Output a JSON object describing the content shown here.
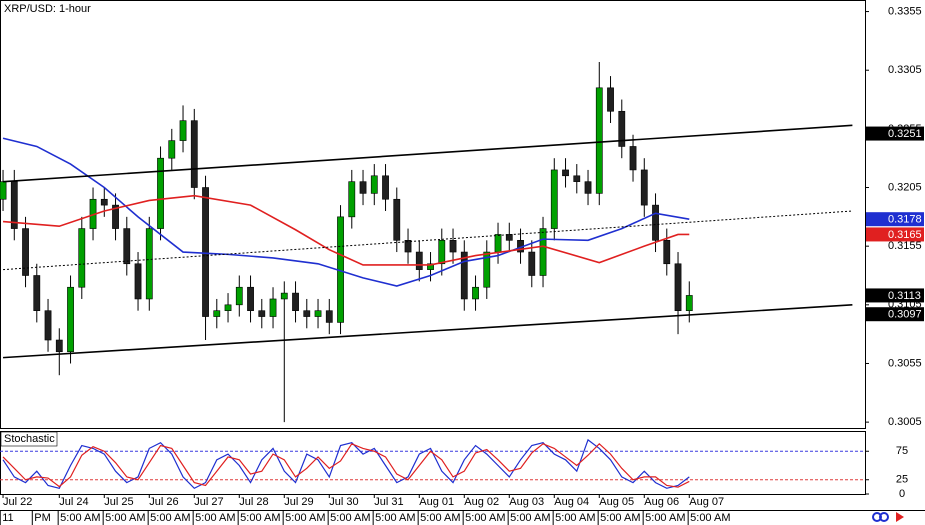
{
  "chart_data": [
    {
      "type": "candlestick",
      "title": "XRP/USD: 1-hour",
      "xlim": [
        -0.27,
        76.62
      ],
      "ylim": [
        0.3,
        0.3364
      ],
      "yticks": [
        0.3355,
        0.3305,
        0.3255,
        0.3205,
        0.3155,
        0.3105,
        0.3055,
        0.3005
      ],
      "xticks": [
        {
          "value": 0,
          "label": "Jul 22"
        },
        {
          "value": 5,
          "label": "Jul 24"
        },
        {
          "value": 9,
          "label": "Jul 25"
        },
        {
          "value": 13,
          "label": "Jul 26"
        },
        {
          "value": 17,
          "label": "Jul 27"
        },
        {
          "value": 21,
          "label": "Jul 28"
        },
        {
          "value": 25,
          "label": "Jul 29"
        },
        {
          "value": 29,
          "label": "Jul 30"
        },
        {
          "value": 33,
          "label": "Jul 31"
        },
        {
          "value": 37,
          "label": "Aug 01"
        },
        {
          "value": 41,
          "label": "Aug 02"
        },
        {
          "value": 45,
          "label": "Aug 03"
        },
        {
          "value": 49,
          "label": "Aug 04"
        },
        {
          "value": 53,
          "label": "Aug 05"
        },
        {
          "value": 57,
          "label": "Aug 06"
        },
        {
          "value": 61,
          "label": "Aug 07"
        }
      ],
      "up_color": "#00a000",
      "down_color": "#202020",
      "open": [
        0.3195,
        0.321,
        0.317,
        0.313,
        0.31,
        0.3075,
        0.3065,
        0.312,
        0.317,
        0.3195,
        0.319,
        0.317,
        0.314,
        0.311,
        0.317,
        0.323,
        0.3245,
        0.3262,
        0.3205,
        0.3095,
        0.31,
        0.3105,
        0.312,
        0.31,
        0.3095,
        0.311,
        0.3115,
        0.31,
        0.3095,
        0.31,
        0.309,
        0.318,
        0.321,
        0.32,
        0.3215,
        0.3195,
        0.316,
        0.315,
        0.3135,
        0.314,
        0.316,
        0.315,
        0.311,
        0.312,
        0.315,
        0.3165,
        0.316,
        0.315,
        0.313,
        0.317,
        0.322,
        0.3215,
        0.321,
        0.32,
        0.329,
        0.327,
        0.324,
        0.322,
        0.319,
        0.316,
        0.314,
        0.31
      ],
      "high": [
        0.322,
        0.322,
        0.318,
        0.314,
        0.311,
        0.3085,
        0.313,
        0.318,
        0.3205,
        0.3205,
        0.32,
        0.318,
        0.315,
        0.318,
        0.324,
        0.3255,
        0.3275,
        0.3272,
        0.3215,
        0.311,
        0.3115,
        0.313,
        0.313,
        0.311,
        0.312,
        0.3125,
        0.3125,
        0.311,
        0.311,
        0.311,
        0.319,
        0.322,
        0.322,
        0.3225,
        0.3225,
        0.3205,
        0.317,
        0.316,
        0.315,
        0.317,
        0.317,
        0.316,
        0.313,
        0.316,
        0.3175,
        0.3175,
        0.317,
        0.316,
        0.318,
        0.323,
        0.323,
        0.3225,
        0.322,
        0.3312,
        0.33,
        0.328,
        0.325,
        0.323,
        0.32,
        0.317,
        0.315,
        0.3125
      ],
      "low": [
        0.3185,
        0.316,
        0.312,
        0.309,
        0.3065,
        0.3045,
        0.3055,
        0.311,
        0.316,
        0.318,
        0.316,
        0.313,
        0.31,
        0.31,
        0.316,
        0.322,
        0.3235,
        0.3195,
        0.3075,
        0.3085,
        0.309,
        0.3095,
        0.309,
        0.3085,
        0.3085,
        0.3005,
        0.309,
        0.3085,
        0.3085,
        0.308,
        0.308,
        0.317,
        0.319,
        0.319,
        0.3185,
        0.315,
        0.314,
        0.3125,
        0.3125,
        0.313,
        0.314,
        0.31,
        0.31,
        0.311,
        0.314,
        0.315,
        0.314,
        0.312,
        0.312,
        0.316,
        0.3205,
        0.32,
        0.319,
        0.319,
        0.326,
        0.323,
        0.321,
        0.318,
        0.315,
        0.313,
        0.308,
        0.309
      ],
      "close": [
        0.321,
        0.317,
        0.313,
        0.31,
        0.3075,
        0.3065,
        0.312,
        0.317,
        0.3195,
        0.319,
        0.317,
        0.314,
        0.311,
        0.317,
        0.323,
        0.3245,
        0.3262,
        0.3205,
        0.3095,
        0.31,
        0.3105,
        0.312,
        0.31,
        0.3095,
        0.311,
        0.3115,
        0.31,
        0.3095,
        0.31,
        0.309,
        0.318,
        0.321,
        0.32,
        0.3215,
        0.3195,
        0.316,
        0.315,
        0.3135,
        0.314,
        0.316,
        0.315,
        0.311,
        0.312,
        0.315,
        0.3165,
        0.316,
        0.315,
        0.313,
        0.317,
        0.322,
        0.3215,
        0.321,
        0.32,
        0.329,
        0.327,
        0.324,
        0.322,
        0.319,
        0.316,
        0.314,
        0.31,
        0.3113
      ],
      "series": [
        {
          "color": "#1f2fd0",
          "x": [
            0,
            3,
            6,
            9,
            12,
            16,
            20,
            24,
            28,
            32,
            35,
            38,
            41,
            44,
            48,
            52,
            55,
            58,
            61
          ],
          "values": [
            0.3247,
            0.324,
            0.3225,
            0.3205,
            0.318,
            0.315,
            0.3148,
            0.3145,
            0.314,
            0.3128,
            0.3121,
            0.313,
            0.3142,
            0.3147,
            0.3161,
            0.316,
            0.317,
            0.3183,
            0.3178
          ]
        },
        {
          "color": "#e02020",
          "x": [
            0,
            5,
            9,
            13,
            17,
            22,
            26,
            29,
            32,
            38,
            42,
            48,
            53,
            57,
            60,
            61
          ],
          "values": [
            0.3176,
            0.3172,
            0.3185,
            0.3194,
            0.3198,
            0.319,
            0.3169,
            0.3152,
            0.3139,
            0.3139,
            0.3147,
            0.3155,
            0.3141,
            0.3155,
            0.3165,
            0.3165
          ]
        }
      ],
      "trendlines": [
        {
          "x": [
            0,
            75.5
          ],
          "values": [
            0.321,
            0.3258
          ],
          "dashed": false
        },
        {
          "x": [
            0,
            75.5
          ],
          "values": [
            0.3135,
            0.3185
          ],
          "dashed": true
        },
        {
          "x": [
            0,
            75.5
          ],
          "values": [
            0.306,
            0.3105
          ],
          "dashed": false
        }
      ],
      "price_labels": [
        {
          "value": 0.3251,
          "color": "#000000"
        },
        {
          "value": 0.3178,
          "color": "#1f2fd0"
        },
        {
          "value": 0.3165,
          "color": "#e02020"
        },
        {
          "value": 0.3113,
          "color": "#000000"
        },
        {
          "value": 0.3097,
          "color": "#000000"
        }
      ]
    },
    {
      "type": "line",
      "title": "Stochastic",
      "xlim": [
        -0.27,
        76.62
      ],
      "ylim": [
        0,
        100
      ],
      "yticks": [
        75,
        25,
        0
      ],
      "grid": true,
      "xticks": [
        {
          "value": -0.25,
          "label": "11"
        },
        {
          "value": 2.6,
          "label": "PM"
        },
        {
          "value": 4.9,
          "label": "5:00 AM"
        },
        {
          "value": 8.9,
          "label": "5:00 AM"
        },
        {
          "value": 12.9,
          "label": "5:00 AM"
        },
        {
          "value": 16.9,
          "label": "5:00 AM"
        },
        {
          "value": 20.9,
          "label": "5:00 AM"
        },
        {
          "value": 24.9,
          "label": "5:00 AM"
        },
        {
          "value": 28.9,
          "label": "5:00 AM"
        },
        {
          "value": 32.9,
          "label": "5:00 AM"
        },
        {
          "value": 36.9,
          "label": "5:00 AM"
        },
        {
          "value": 40.9,
          "label": "5:00 AM"
        },
        {
          "value": 44.9,
          "label": "5:00 AM"
        },
        {
          "value": 48.9,
          "label": "5:00 AM"
        },
        {
          "value": 52.9,
          "label": "5:00 AM"
        },
        {
          "value": 56.9,
          "label": "5:00 AM"
        },
        {
          "value": 60.9,
          "label": "5:00 AM"
        }
      ],
      "series": [
        {
          "color": "#1f2fd0",
          "values": [
            60,
            30,
            20,
            40,
            15,
            10,
            50,
            85,
            80,
            70,
            40,
            20,
            30,
            80,
            90,
            70,
            30,
            10,
            20,
            60,
            70,
            50,
            20,
            60,
            80,
            40,
            20,
            70,
            60,
            30,
            85,
            90,
            70,
            80,
            50,
            20,
            30,
            70,
            80,
            40,
            20,
            60,
            85,
            70,
            50,
            30,
            60,
            85,
            90,
            70,
            60,
            40,
            95,
            80,
            60,
            30,
            20,
            40,
            20,
            10,
            15,
            30
          ]
        },
        {
          "color": "#e02020",
          "values": [
            65,
            45,
            25,
            30,
            28,
            13,
            30,
            68,
            83,
            75,
            55,
            30,
            25,
            55,
            85,
            80,
            50,
            20,
            15,
            40,
            65,
            60,
            35,
            40,
            70,
            60,
            30,
            45,
            65,
            45,
            58,
            88,
            80,
            75,
            65,
            35,
            25,
            50,
            75,
            60,
            30,
            40,
            72,
            78,
            60,
            40,
            45,
            72,
            88,
            80,
            65,
            50,
            68,
            88,
            70,
            45,
            25,
            30,
            30,
            15,
            12,
            22
          ]
        }
      ]
    }
  ]
}
